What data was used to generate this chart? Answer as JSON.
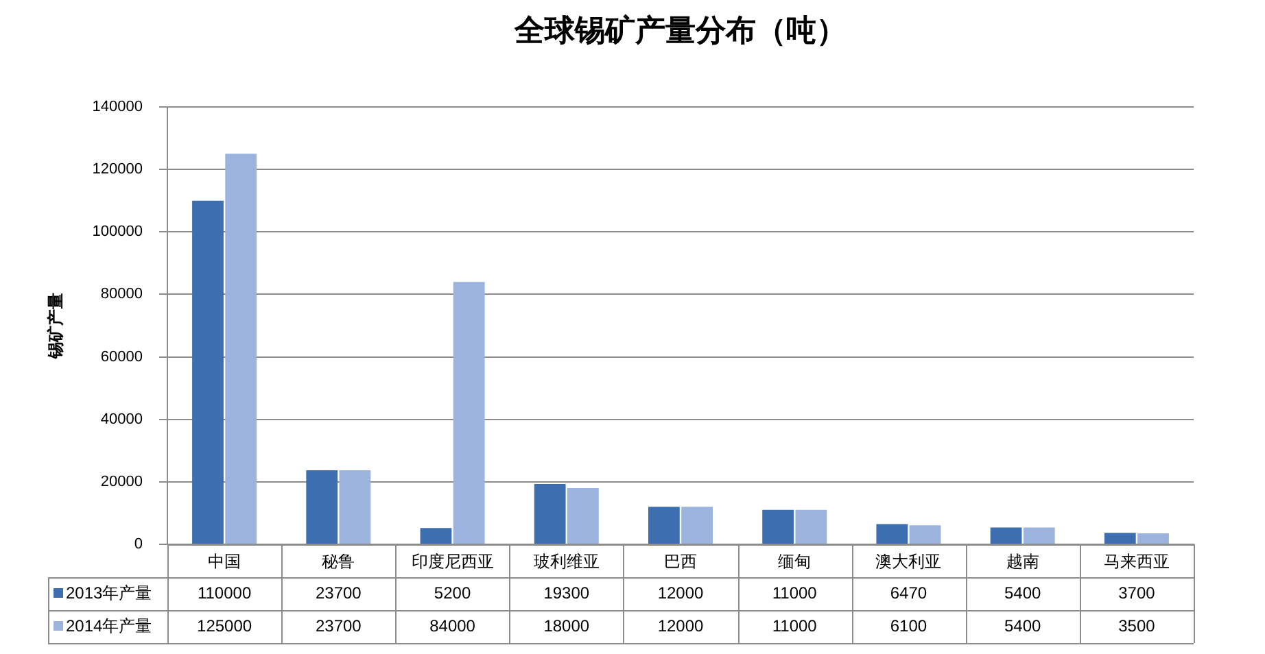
{
  "chart_data": {
    "type": "bar",
    "title": "全球锡矿产量分布（吨）",
    "ylabel": "锡矿产量",
    "categories": [
      "中国",
      "秘鲁",
      "印度尼西亚",
      "玻利维亚",
      "巴西",
      "缅甸",
      "澳大利亚",
      "越南",
      "马来西亚"
    ],
    "series": [
      {
        "name": "2013年产量",
        "color": "#3d6fb0",
        "values": [
          110000,
          23700,
          5200,
          19300,
          12000,
          11000,
          6470,
          5400,
          3700
        ]
      },
      {
        "name": "2014年产量",
        "color": "#9bb3dd",
        "values": [
          125000,
          23700,
          84000,
          18000,
          12000,
          11000,
          6100,
          5400,
          3500
        ]
      }
    ],
    "ylim": [
      0,
      140000
    ],
    "yticks": [
      0,
      20000,
      40000,
      60000,
      80000,
      100000,
      120000,
      140000
    ],
    "grid": "y",
    "legend": "bottom",
    "data_labels": true
  }
}
